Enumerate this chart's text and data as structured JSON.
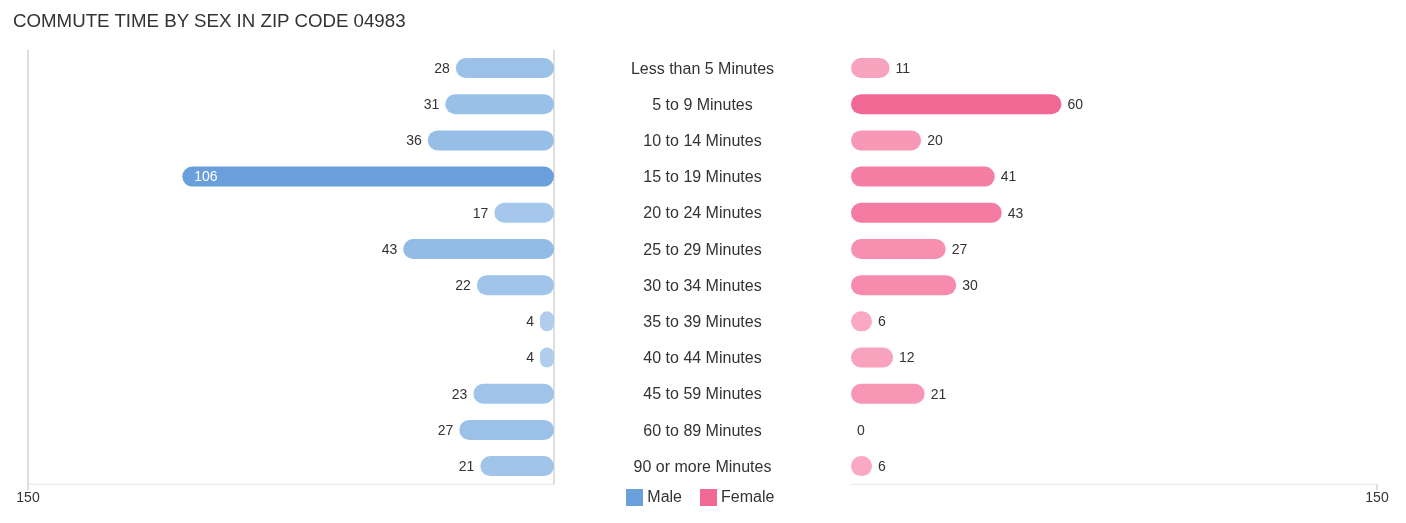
{
  "chart_data": [
    {
      "type": "bar",
      "orientation": "horizontal",
      "title": "COMMUTE TIME BY SEX IN ZIP CODE 04983",
      "categories": [
        "Less than 5 Minutes",
        "5 to 9 Minutes",
        "10 to 14 Minutes",
        "15 to 19 Minutes",
        "20 to 24 Minutes",
        "25 to 29 Minutes",
        "30 to 34 Minutes",
        "35 to 39 Minutes",
        "40 to 44 Minutes",
        "45 to 59 Minutes",
        "60 to 89 Minutes",
        "90 or more Minutes"
      ],
      "series": [
        {
          "name": "Male",
          "color": "#6a9fdc",
          "colors": [
            "#9bc1e8",
            "#99c0e8",
            "#96bee7",
            "#6a9fdc",
            "#a5c7eb",
            "#92bbe6",
            "#a0c4ea",
            "#b0cdee",
            "#b0cdee",
            "#9fc3e9",
            "#9cc1e8",
            "#a1c4ea"
          ],
          "values": [
            28,
            31,
            36,
            106,
            17,
            43,
            22,
            4,
            4,
            23,
            27,
            21
          ]
        }
      ],
      "xlim": [
        150,
        0
      ],
      "xticks": [
        150
      ],
      "grid": "x",
      "data_labels": true,
      "legend": "bottom right"
    },
    {
      "type": "bar",
      "orientation": "horizontal",
      "categories": [
        null,
        null,
        null,
        null,
        null,
        null,
        null,
        null,
        null,
        null,
        null,
        null
      ],
      "series": [
        {
          "name": "Female",
          "color": "#f26894",
          "colors": [
            "#f8a3be",
            "#f26894",
            "#f798b6",
            "#f47ea4",
            "#f47ca2",
            "#f68fb0",
            "#f68bad",
            "#f9a9c2",
            "#f8a2bd",
            "#f797b5",
            "#f9b1c8",
            "#f9a9c2"
          ],
          "values": [
            11,
            60,
            20,
            41,
            43,
            27,
            30,
            6,
            12,
            21,
            0,
            6
          ]
        }
      ],
      "xlim": [
        0,
        150
      ],
      "xticks": [
        150
      ],
      "data_labels": true,
      "legend": "bottom left"
    }
  ]
}
